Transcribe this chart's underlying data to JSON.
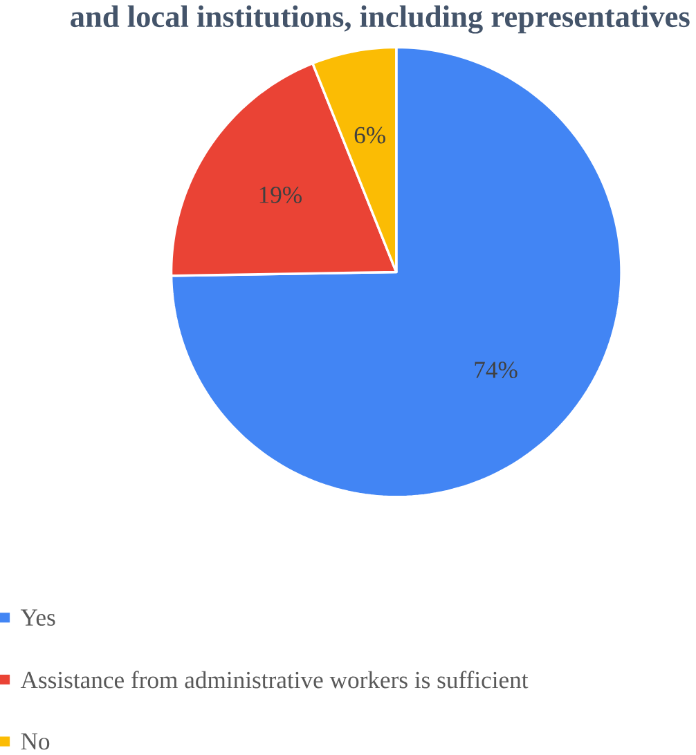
{
  "chart_data": {
    "type": "pie",
    "title": "and local institutions, including representatives",
    "categories": [
      "Yes",
      "Assistance from administrative workers is sufficient",
      "No"
    ],
    "values": [
      74,
      19,
      6
    ],
    "colors": [
      "#4285f4",
      "#ea4335",
      "#fbbc04"
    ],
    "value_labels": [
      "74%",
      "19%",
      "6%"
    ],
    "legend": "bottom"
  }
}
